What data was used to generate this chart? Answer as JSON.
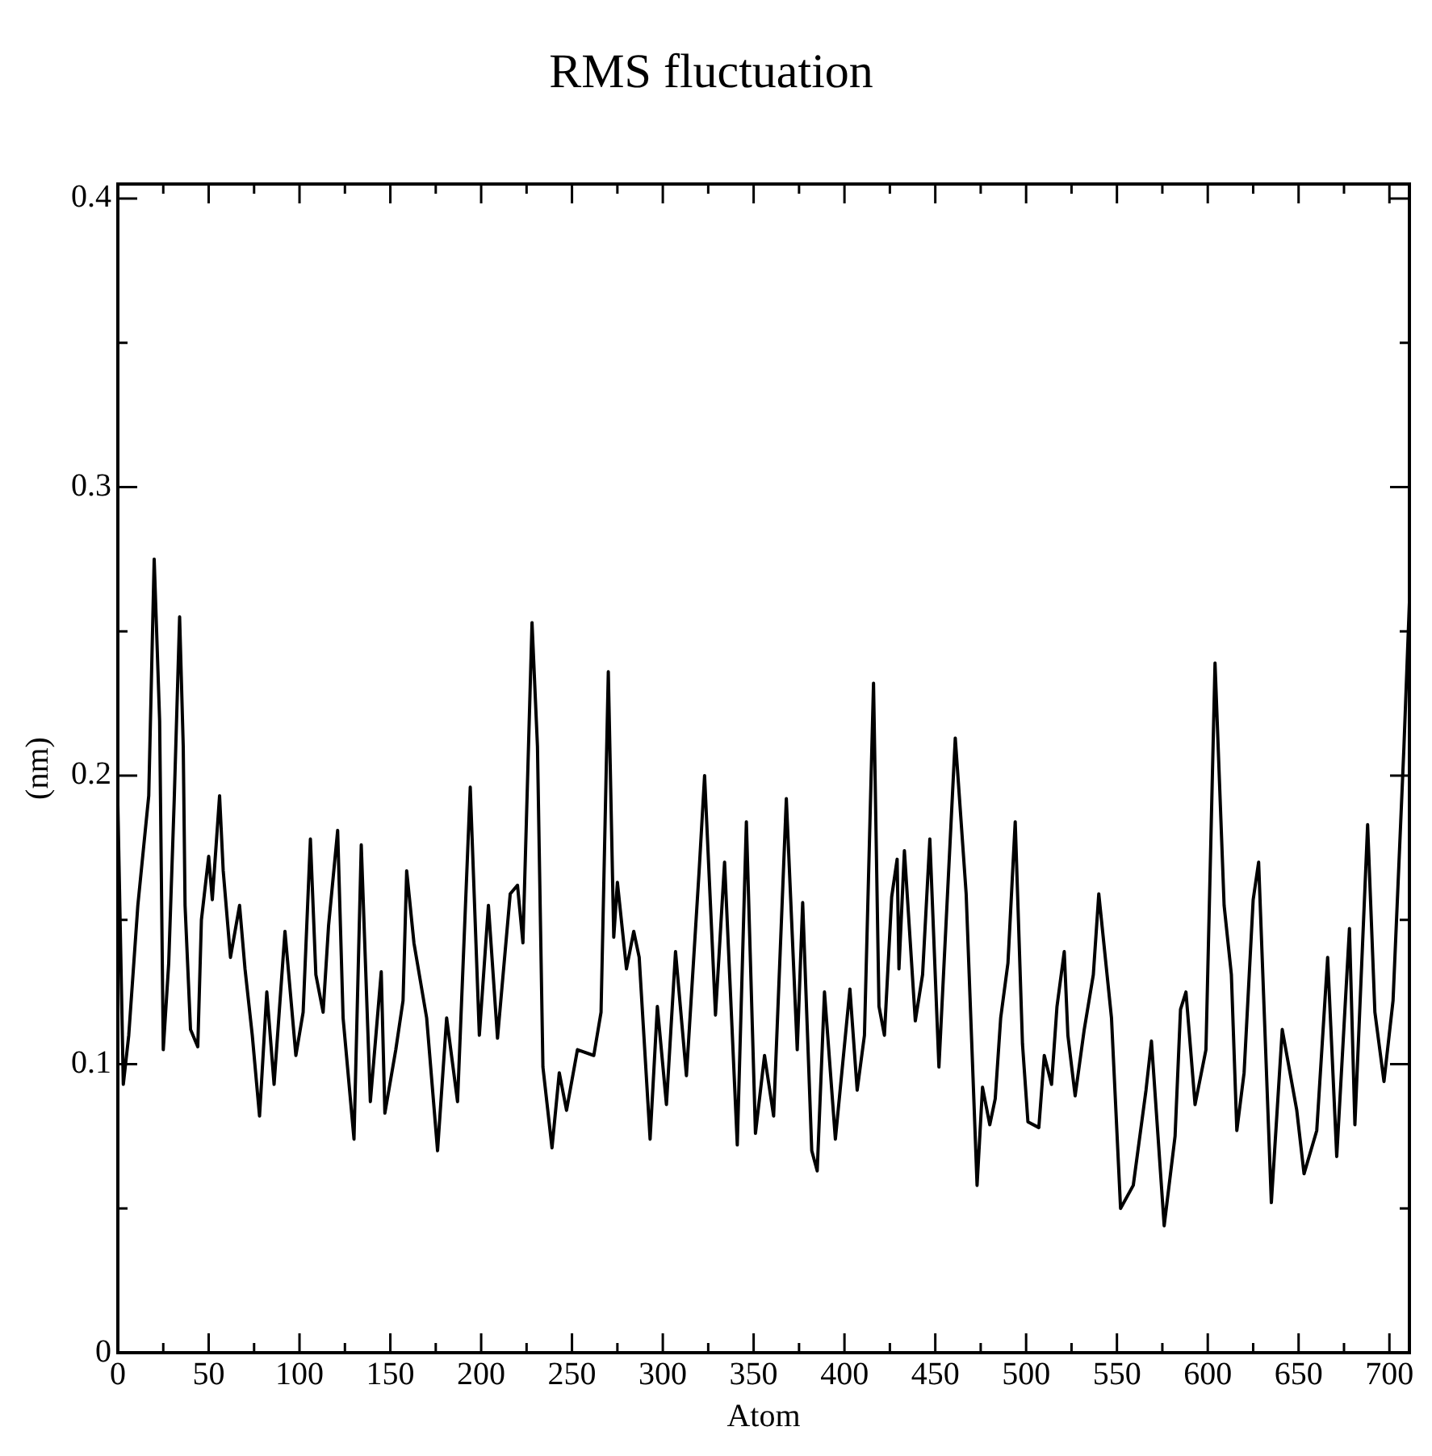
{
  "chart_data": {
    "type": "line",
    "title": "RMS fluctuation",
    "xlabel": "Atom",
    "ylabel": "(nm)",
    "xlim": [
      0,
      711
    ],
    "ylim": [
      0,
      0.405
    ],
    "xticks": [
      0,
      {
        "value": 25,
        "label": null
      },
      50,
      {
        "value": 75,
        "label": null
      },
      100,
      {
        "value": 125,
        "label": null
      },
      150,
      {
        "value": 175,
        "label": null
      },
      200,
      {
        "value": 225,
        "label": null
      },
      250,
      {
        "value": 275,
        "label": null
      },
      300,
      {
        "value": 325,
        "label": null
      },
      350,
      {
        "value": 375,
        "label": null
      },
      400,
      {
        "value": 425,
        "label": null
      },
      450,
      {
        "value": 475,
        "label": null
      },
      500,
      {
        "value": 525,
        "label": null
      },
      550,
      {
        "value": 575,
        "label": null
      },
      600,
      {
        "value": 625,
        "label": null
      },
      650,
      {
        "value": 675,
        "label": null
      },
      700
    ],
    "yticks": [
      {
        "value": 0,
        "label": "0"
      },
      {
        "value": 0.05,
        "label": null
      },
      0.1,
      {
        "value": 0.15,
        "label": null
      },
      0.2,
      {
        "value": 0.25,
        "label": null
      },
      0.3,
      {
        "value": 0.35,
        "label": null
      },
      0.4
    ],
    "grid": false,
    "legend": false,
    "marker": "none",
    "line_style": "solid",
    "series": [
      {
        "color": "#000000",
        "x": [
          0,
          3,
          6,
          11,
          14,
          17,
          20,
          23,
          25,
          28,
          31,
          34,
          36,
          37,
          40,
          44,
          46,
          50,
          52,
          56,
          58,
          62,
          67,
          70,
          74,
          78,
          82,
          86,
          92,
          98,
          102,
          106,
          109,
          113,
          116,
          121,
          124,
          130,
          134,
          139,
          145,
          147,
          153,
          157,
          159,
          163,
          170,
          176,
          181,
          187,
          194,
          199,
          204,
          209,
          216,
          220,
          223,
          228,
          231,
          234,
          239,
          243,
          247,
          253,
          262,
          266,
          270,
          273,
          275,
          280,
          284,
          287,
          293,
          297,
          302,
          307,
          313,
          320,
          323,
          329,
          334,
          341,
          346,
          351,
          356,
          361,
          368,
          374,
          377,
          382,
          385,
          389,
          395,
          403,
          407,
          411,
          416,
          419,
          422,
          426,
          429,
          430,
          433,
          439,
          443,
          447,
          452,
          461,
          467,
          473,
          476,
          480,
          483,
          486,
          490,
          494,
          498,
          501,
          507,
          510,
          514,
          517,
          521,
          523,
          527,
          532,
          537,
          540,
          547,
          552,
          559,
          566,
          569,
          576,
          582,
          585,
          588,
          593,
          599,
          604,
          609,
          613,
          616,
          620,
          625,
          628,
          635,
          641,
          649,
          653,
          660,
          666,
          671,
          678,
          681,
          688,
          692,
          697,
          702,
          708,
          711
        ],
        "values": [
          0.19,
          0.093,
          0.11,
          0.155,
          0.174,
          0.193,
          0.275,
          0.219,
          0.105,
          0.135,
          0.191,
          0.255,
          0.21,
          0.155,
          0.112,
          0.106,
          0.15,
          0.172,
          0.157,
          0.193,
          0.167,
          0.137,
          0.155,
          0.133,
          0.11,
          0.082,
          0.125,
          0.093,
          0.146,
          0.103,
          0.118,
          0.178,
          0.131,
          0.118,
          0.148,
          0.181,
          0.116,
          0.074,
          0.176,
          0.087,
          0.132,
          0.083,
          0.105,
          0.122,
          0.167,
          0.142,
          0.116,
          0.07,
          0.116,
          0.087,
          0.196,
          0.11,
          0.155,
          0.109,
          0.159,
          0.162,
          0.142,
          0.253,
          0.21,
          0.099,
          0.071,
          0.097,
          0.084,
          0.105,
          0.103,
          0.118,
          0.236,
          0.144,
          0.163,
          0.133,
          0.146,
          0.137,
          0.074,
          0.12,
          0.086,
          0.139,
          0.096,
          0.167,
          0.2,
          0.117,
          0.17,
          0.072,
          0.184,
          0.076,
          0.103,
          0.082,
          0.192,
          0.105,
          0.156,
          0.07,
          0.063,
          0.125,
          0.074,
          0.126,
          0.091,
          0.11,
          0.232,
          0.12,
          0.11,
          0.158,
          0.171,
          0.133,
          0.174,
          0.115,
          0.131,
          0.178,
          0.099,
          0.213,
          0.159,
          0.058,
          0.092,
          0.079,
          0.088,
          0.116,
          0.135,
          0.184,
          0.107,
          0.08,
          0.078,
          0.103,
          0.093,
          0.12,
          0.139,
          0.11,
          0.089,
          0.112,
          0.131,
          0.159,
          0.116,
          0.05,
          0.058,
          0.091,
          0.108,
          0.044,
          0.075,
          0.119,
          0.125,
          0.086,
          0.105,
          0.239,
          0.155,
          0.131,
          0.077,
          0.097,
          0.157,
          0.17,
          0.052,
          0.112,
          0.084,
          0.062,
          0.077,
          0.137,
          0.068,
          0.147,
          0.079,
          0.183,
          0.118,
          0.094,
          0.122,
          0.21,
          0.26
        ]
      }
    ]
  }
}
